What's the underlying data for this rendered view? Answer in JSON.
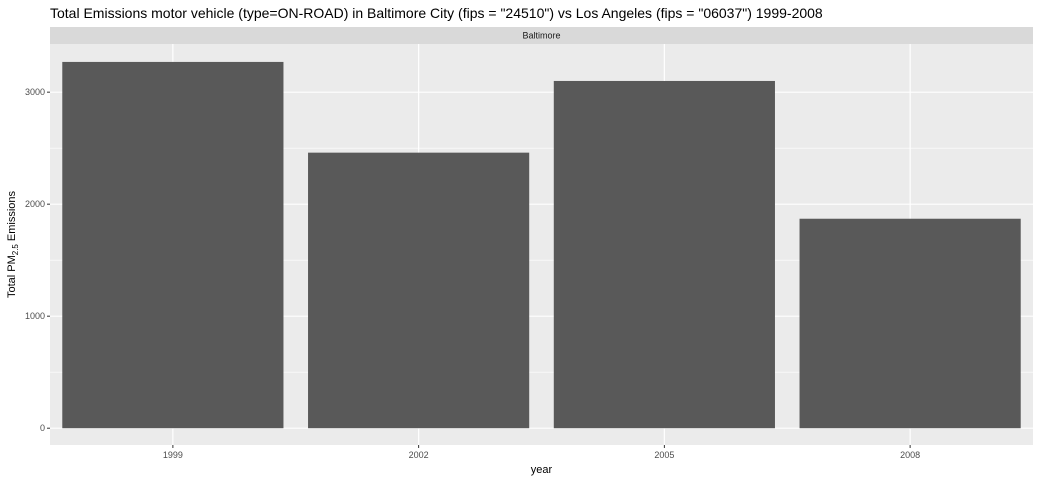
{
  "title": "Total Emissions motor vehicle (type=ON-ROAD) in Baltimore City (fips = \"24510\") vs Los Angeles (fips = \"06037\")  1999-2008",
  "colors": {
    "panel_bg": "#ebebeb",
    "strip_bg": "#d9d9d9",
    "gridline": "#ffffff",
    "bar_fill": "#595959"
  },
  "chart_data": {
    "type": "bar",
    "facet_label": "Baltimore",
    "categories": [
      "1999",
      "2002",
      "2005",
      "2008"
    ],
    "values": [
      3270,
      2460,
      3100,
      1870
    ],
    "xlabel": "year",
    "ylabel": {
      "prefix": "Total PM",
      "subscript": "2.5",
      "suffix": " Emissions"
    },
    "yticks": [
      0,
      1000,
      2000,
      3000
    ],
    "ylim": [
      -150,
      3430
    ],
    "grid": true
  }
}
